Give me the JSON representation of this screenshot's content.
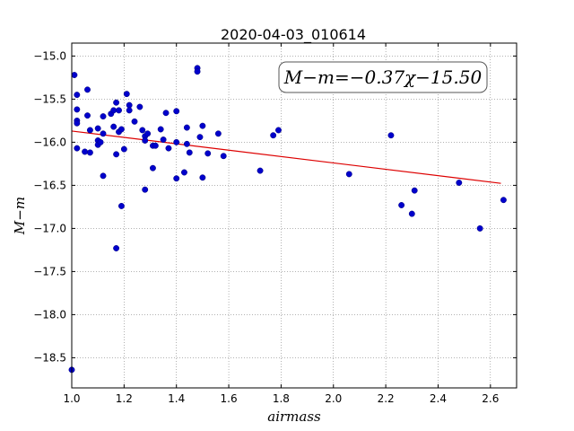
{
  "chart_data": {
    "type": "scatter",
    "title": "2020-04-03_010614",
    "xlabel": "airmass",
    "ylabel": "M−m",
    "xlim": [
      1.0,
      2.7
    ],
    "ylim": [
      -18.85,
      -14.85
    ],
    "x_ticks": [
      1.0,
      1.2,
      1.4,
      1.6,
      1.8,
      2.0,
      2.2,
      2.4,
      2.6
    ],
    "x_tick_labels": [
      "1.0",
      "1.2",
      "1.4",
      "1.6",
      "1.8",
      "2.0",
      "2.2",
      "2.4",
      "2.6"
    ],
    "y_ticks": [
      -15.0,
      -15.5,
      -16.0,
      -16.5,
      -17.0,
      -17.5,
      -18.0,
      -18.5
    ],
    "y_tick_labels": [
      "−15.0",
      "−15.5",
      "−16.0",
      "−16.5",
      "−17.0",
      "−17.5",
      "−18.0",
      "−18.5"
    ],
    "grid": true,
    "annotation": "M−m=−0.37χ−15.50",
    "fit": {
      "slope": -0.37,
      "intercept": -15.5,
      "x_range": [
        1.0,
        2.64
      ],
      "color": "#dd0000"
    },
    "point_color": "#0000cc",
    "points": [
      [
        1.0,
        -18.64
      ],
      [
        1.01,
        -15.22
      ],
      [
        1.02,
        -15.45
      ],
      [
        1.02,
        -15.62
      ],
      [
        1.02,
        -15.75
      ],
      [
        1.02,
        -15.78
      ],
      [
        1.02,
        -16.07
      ],
      [
        1.05,
        -16.11
      ],
      [
        1.06,
        -15.39
      ],
      [
        1.06,
        -15.69
      ],
      [
        1.07,
        -15.86
      ],
      [
        1.07,
        -16.12
      ],
      [
        1.1,
        -15.84
      ],
      [
        1.1,
        -15.98
      ],
      [
        1.1,
        -16.03
      ],
      [
        1.11,
        -16.0
      ],
      [
        1.12,
        -16.39
      ],
      [
        1.12,
        -15.9
      ],
      [
        1.12,
        -15.7
      ],
      [
        1.15,
        -15.67
      ],
      [
        1.16,
        -15.82
      ],
      [
        1.16,
        -15.63
      ],
      [
        1.17,
        -15.54
      ],
      [
        1.17,
        -16.14
      ],
      [
        1.17,
        -17.23
      ],
      [
        1.18,
        -15.63
      ],
      [
        1.18,
        -15.88
      ],
      [
        1.19,
        -16.74
      ],
      [
        1.19,
        -15.85
      ],
      [
        1.2,
        -16.08
      ],
      [
        1.21,
        -15.44
      ],
      [
        1.22,
        -15.57
      ],
      [
        1.22,
        -15.63
      ],
      [
        1.24,
        -15.76
      ],
      [
        1.26,
        -15.59
      ],
      [
        1.27,
        -15.86
      ],
      [
        1.28,
        -15.93
      ],
      [
        1.28,
        -15.98
      ],
      [
        1.28,
        -16.55
      ],
      [
        1.29,
        -15.9
      ],
      [
        1.31,
        -16.04
      ],
      [
        1.31,
        -16.3
      ],
      [
        1.32,
        -16.04
      ],
      [
        1.34,
        -15.85
      ],
      [
        1.35,
        -15.97
      ],
      [
        1.36,
        -15.66
      ],
      [
        1.37,
        -16.07
      ],
      [
        1.4,
        -16.42
      ],
      [
        1.4,
        -16.0
      ],
      [
        1.4,
        -15.64
      ],
      [
        1.43,
        -16.35
      ],
      [
        1.44,
        -16.02
      ],
      [
        1.44,
        -15.83
      ],
      [
        1.45,
        -16.12
      ],
      [
        1.48,
        -15.14
      ],
      [
        1.48,
        -15.18
      ],
      [
        1.49,
        -15.94
      ],
      [
        1.5,
        -15.81
      ],
      [
        1.5,
        -16.41
      ],
      [
        1.52,
        -16.13
      ],
      [
        1.56,
        -15.9
      ],
      [
        1.58,
        -16.16
      ],
      [
        1.72,
        -16.33
      ],
      [
        1.77,
        -15.92
      ],
      [
        1.79,
        -15.86
      ],
      [
        2.06,
        -16.37
      ],
      [
        2.22,
        -15.92
      ],
      [
        2.26,
        -16.73
      ],
      [
        2.3,
        -16.83
      ],
      [
        2.31,
        -16.56
      ],
      [
        2.48,
        -16.47
      ],
      [
        2.56,
        -17.0
      ],
      [
        2.65,
        -16.67
      ]
    ]
  }
}
